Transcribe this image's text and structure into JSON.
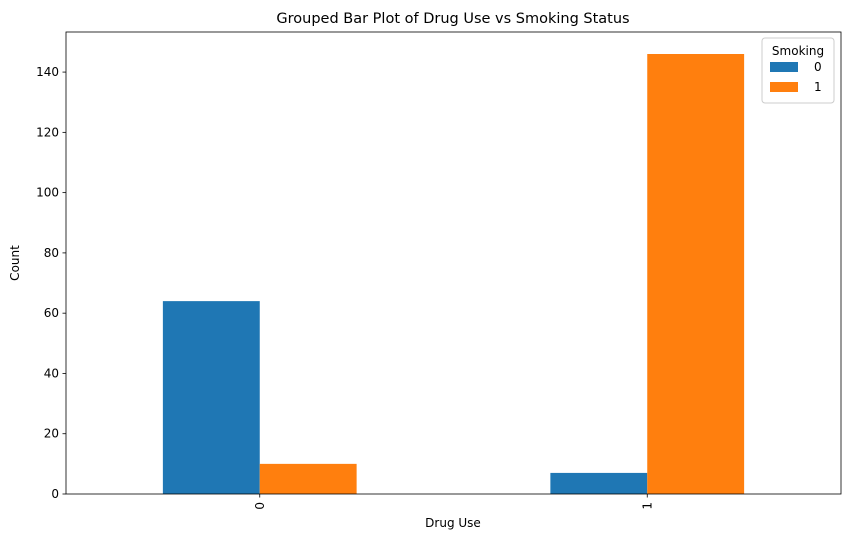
{
  "chart_data": {
    "type": "bar",
    "title": "Grouped Bar Plot of Drug Use vs Smoking Status",
    "xlabel": "Drug Use",
    "ylabel": "Count",
    "categories": [
      "0",
      "1"
    ],
    "series": [
      {
        "name": "0",
        "color": "#1f77b4",
        "values": [
          64,
          7
        ]
      },
      {
        "name": "1",
        "color": "#ff7f0e",
        "values": [
          10,
          146
        ]
      }
    ],
    "ylim": [
      0,
      153.3
    ],
    "yticks": [
      0,
      20,
      40,
      60,
      80,
      100,
      120,
      140
    ],
    "grid": false,
    "legend": {
      "title": "Smoking",
      "position": "top-right"
    }
  }
}
